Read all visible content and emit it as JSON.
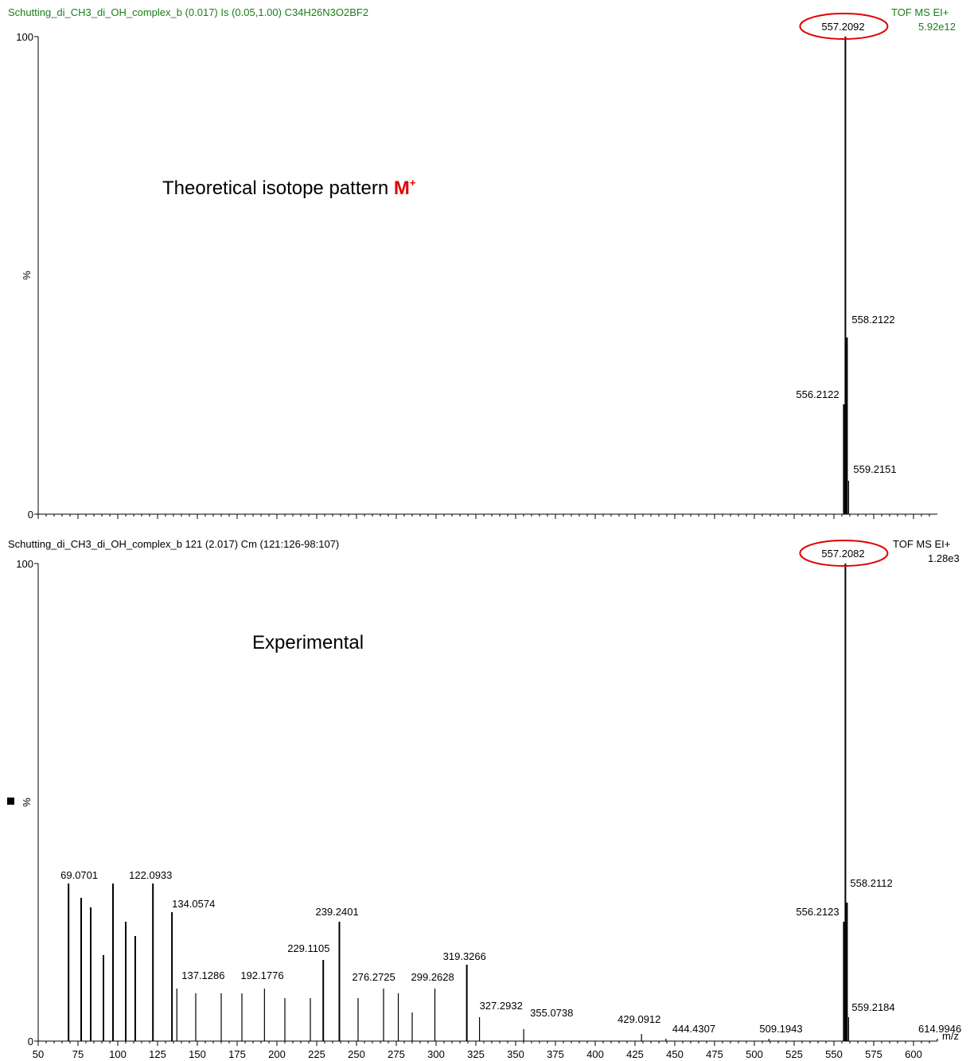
{
  "charts": {
    "top": {
      "title": "Schutting_di_CH3_di_OH_complex_b  (0.017) Is (0.05,1.00) C34H26N3O2BF2",
      "mode": "TOF MS EI+",
      "intensity": "5.92e12",
      "annotation_text": "Theoretical isotope pattern ",
      "annotation_ion": "M",
      "annotation_charge": "+"
    },
    "bottom": {
      "title": "Schutting_di_CH3_di_OH_complex_b 121 (2.017) Cm (121:126-98:107)",
      "mode": "TOF MS EI+",
      "intensity": "1.28e3",
      "annotation_text": "Experimental"
    }
  },
  "colors": {
    "title_top": "#1a7f1a",
    "highlight": "#e00000",
    "peak": "#000000"
  },
  "chart_data": [
    {
      "type": "bar",
      "xlim": [
        50,
        615
      ],
      "ylim": [
        0,
        100
      ],
      "ylabel": "%",
      "y_ticks": [
        0,
        100
      ],
      "peaks": [
        {
          "x": 556.2122,
          "y": 23,
          "label": "556.2122"
        },
        {
          "x": 557.2092,
          "y": 100,
          "label": "557.2092"
        },
        {
          "x": 558.2122,
          "y": 37,
          "label": "558.2122"
        },
        {
          "x": 559.2151,
          "y": 7,
          "label": "559.2151"
        }
      ],
      "highlighted_peak": "557.2092"
    },
    {
      "type": "bar",
      "xlim": [
        50,
        615
      ],
      "ylim": [
        0,
        100
      ],
      "xlabel": "m/z",
      "ylabel": "%",
      "y_ticks": [
        0,
        100
      ],
      "x_ticks": [
        50,
        75,
        100,
        125,
        150,
        175,
        200,
        225,
        250,
        275,
        300,
        325,
        350,
        375,
        400,
        425,
        450,
        475,
        500,
        525,
        550,
        575,
        600
      ],
      "peaks": [
        {
          "x": 69.0701,
          "y": 33,
          "label": "69.0701"
        },
        {
          "x": 77.0,
          "y": 30,
          "label": ""
        },
        {
          "x": 83.0,
          "y": 28,
          "label": ""
        },
        {
          "x": 91.0,
          "y": 18,
          "label": ""
        },
        {
          "x": 97.0,
          "y": 33,
          "label": ""
        },
        {
          "x": 105.0,
          "y": 25,
          "label": ""
        },
        {
          "x": 111.0,
          "y": 22,
          "label": ""
        },
        {
          "x": 122.0933,
          "y": 33,
          "label": "122.0933"
        },
        {
          "x": 134.0574,
          "y": 27,
          "label": "134.0574"
        },
        {
          "x": 137.1286,
          "y": 11,
          "label": "137.1286"
        },
        {
          "x": 149.0,
          "y": 10,
          "label": ""
        },
        {
          "x": 165.0,
          "y": 10,
          "label": ""
        },
        {
          "x": 178.0,
          "y": 10,
          "label": ""
        },
        {
          "x": 192.1776,
          "y": 11,
          "label": "192.1776"
        },
        {
          "x": 205.0,
          "y": 9,
          "label": ""
        },
        {
          "x": 221.0,
          "y": 9,
          "label": ""
        },
        {
          "x": 229.1105,
          "y": 17,
          "label": "229.1105"
        },
        {
          "x": 239.2401,
          "y": 25,
          "label": "239.2401"
        },
        {
          "x": 251.0,
          "y": 9,
          "label": ""
        },
        {
          "x": 267.0,
          "y": 11,
          "label": ""
        },
        {
          "x": 276.2725,
          "y": 10,
          "label": "276.2725"
        },
        {
          "x": 285.0,
          "y": 6,
          "label": ""
        },
        {
          "x": 299.2628,
          "y": 11,
          "label": "299.2628"
        },
        {
          "x": 319.3266,
          "y": 16,
          "label": "319.3266"
        },
        {
          "x": 327.2932,
          "y": 5,
          "label": "327.2932"
        },
        {
          "x": 355.0738,
          "y": 2.5,
          "label": "355.0738"
        },
        {
          "x": 429.0912,
          "y": 1.5,
          "label": "429.0912"
        },
        {
          "x": 444.4307,
          "y": 0.5,
          "label": "444.4307"
        },
        {
          "x": 509.1943,
          "y": 0.5,
          "label": "509.1943"
        },
        {
          "x": 556.2123,
          "y": 25,
          "label": "556.2123"
        },
        {
          "x": 557.2082,
          "y": 100,
          "label": "557.2082"
        },
        {
          "x": 558.2112,
          "y": 29,
          "label": "558.2112"
        },
        {
          "x": 559.2184,
          "y": 5,
          "label": "559.2184"
        },
        {
          "x": 614.9946,
          "y": 0.5,
          "label": "614.9946"
        }
      ],
      "highlighted_peak": "557.2082"
    }
  ]
}
